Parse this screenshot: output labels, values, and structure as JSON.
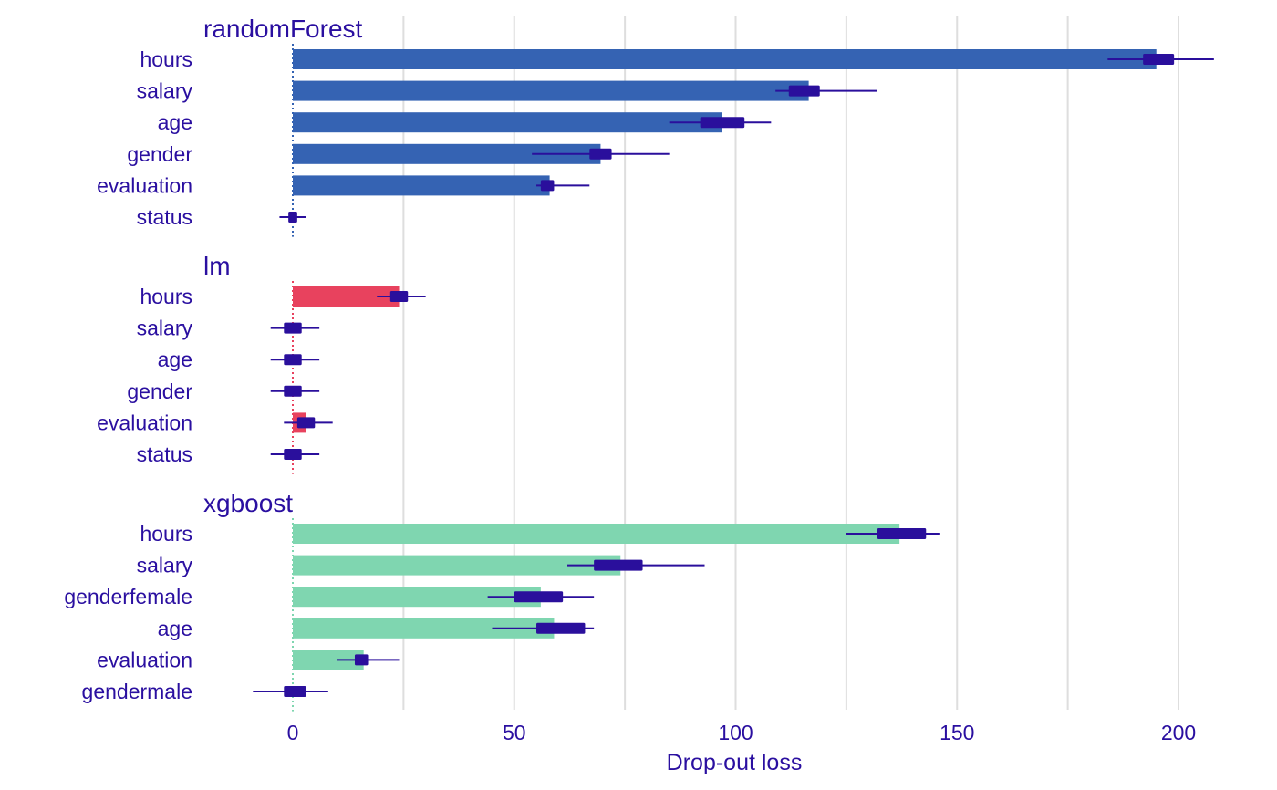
{
  "chart_data": {
    "type": "bar",
    "xlabel": "Drop-out loss",
    "xlim": [
      -20,
      210
    ],
    "x_ticks": [
      0,
      50,
      100,
      150,
      200
    ],
    "x_tick_labels": [
      "0",
      "50",
      "100",
      "150",
      "200"
    ],
    "grid": true,
    "whisker_color": "#2a0f9c",
    "panels": [
      {
        "title": "randomForest",
        "color": "#3563b3",
        "variables": [
          {
            "label": "hours",
            "value": 195,
            "box": [
              192,
              199
            ],
            "whisker": [
              184,
              208
            ]
          },
          {
            "label": "salary",
            "value": 116.5,
            "box": [
              112,
              119
            ],
            "whisker": [
              109,
              132
            ]
          },
          {
            "label": "age",
            "value": 97,
            "box": [
              92,
              102
            ],
            "whisker": [
              85,
              108
            ]
          },
          {
            "label": "gender",
            "value": 69.5,
            "box": [
              67,
              72
            ],
            "whisker": [
              54,
              85
            ]
          },
          {
            "label": "evaluation",
            "value": 58,
            "box": [
              56,
              59
            ],
            "whisker": [
              55,
              67
            ]
          },
          {
            "label": "status",
            "value": 0,
            "box": [
              -1,
              1
            ],
            "whisker": [
              -3,
              3
            ]
          }
        ]
      },
      {
        "title": "lm",
        "color": "#e8425e",
        "variables": [
          {
            "label": "hours",
            "value": 24,
            "box": [
              22,
              26
            ],
            "whisker": [
              19,
              30
            ]
          },
          {
            "label": "salary",
            "value": 0,
            "box": [
              -2,
              2
            ],
            "whisker": [
              -5,
              6
            ]
          },
          {
            "label": "age",
            "value": 0,
            "box": [
              -2,
              2
            ],
            "whisker": [
              -5,
              6
            ]
          },
          {
            "label": "gender",
            "value": 0,
            "box": [
              -2,
              2
            ],
            "whisker": [
              -5,
              6
            ]
          },
          {
            "label": "evaluation",
            "value": 3,
            "box": [
              1,
              5
            ],
            "whisker": [
              -2,
              9
            ]
          },
          {
            "label": "status",
            "value": 0,
            "box": [
              -2,
              2
            ],
            "whisker": [
              -5,
              6
            ]
          }
        ]
      },
      {
        "title": "xgboost",
        "color": "#7fd6b0",
        "variables": [
          {
            "label": "hours",
            "value": 137,
            "box": [
              132,
              143
            ],
            "whisker": [
              125,
              146
            ]
          },
          {
            "label": "salary",
            "value": 74,
            "box": [
              68,
              79
            ],
            "whisker": [
              62,
              93
            ]
          },
          {
            "label": "genderfemale",
            "value": 56,
            "box": [
              50,
              61
            ],
            "whisker": [
              44,
              68
            ]
          },
          {
            "label": "age",
            "value": 59,
            "box": [
              55,
              66
            ],
            "whisker": [
              45,
              68
            ]
          },
          {
            "label": "evaluation",
            "value": 16,
            "box": [
              14,
              17
            ],
            "whisker": [
              10,
              24
            ]
          },
          {
            "label": "gendermale",
            "value": 0,
            "box": [
              -2,
              3
            ],
            "whisker": [
              -9,
              8
            ]
          }
        ]
      }
    ]
  }
}
